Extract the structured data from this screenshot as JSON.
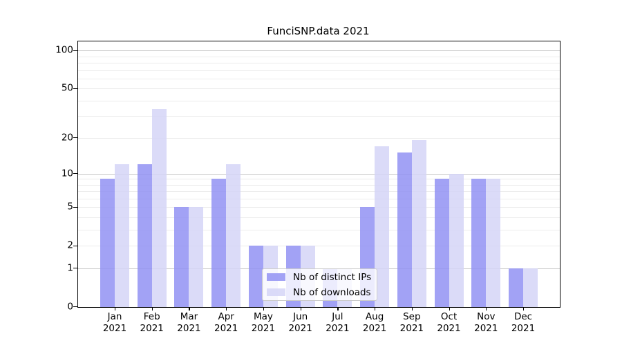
{
  "title": "FunciSNP.data 2021",
  "chart_data": {
    "type": "bar",
    "scale": "log1p",
    "title": "FunciSNP.data 2021",
    "categories": [
      "Jan",
      "Feb",
      "Mar",
      "Apr",
      "May",
      "Jun",
      "Jul",
      "Aug",
      "Sep",
      "Oct",
      "Nov",
      "Dec"
    ],
    "category_year": "2021",
    "series": [
      {
        "name": "Nb of distinct IPs",
        "color": "rgba(146,146,243,0.85)",
        "values": [
          9,
          12,
          5,
          9,
          2,
          2,
          1,
          5,
          15,
          9,
          9,
          1
        ]
      },
      {
        "name": "Nb of downloads",
        "color": "rgba(213,213,247,0.85)",
        "values": [
          12,
          34,
          5,
          12,
          2,
          2,
          1,
          17,
          19,
          10,
          9,
          1
        ]
      }
    ],
    "yticks": [
      0,
      1,
      2,
      5,
      10,
      20,
      50,
      100
    ],
    "ylim": [
      0,
      118
    ],
    "major_gridlines": [
      1,
      10,
      100
    ],
    "minor_gridlines": [
      2,
      3,
      4,
      5,
      6,
      7,
      8,
      9,
      20,
      30,
      40,
      50,
      60,
      70,
      80,
      90
    ],
    "grid": "on",
    "legend_position": "lower-center",
    "xlabel": "",
    "ylabel": ""
  },
  "colors": {
    "distinct_ips_bar": "rgba(146,146,243,0.85)",
    "downloads_bar": "rgba(213,213,247,0.85)",
    "major_gridline": "#c9c9c9",
    "minor_gridline": "#ececec",
    "axis": "#000000",
    "legend_border": "#cccccc"
  }
}
